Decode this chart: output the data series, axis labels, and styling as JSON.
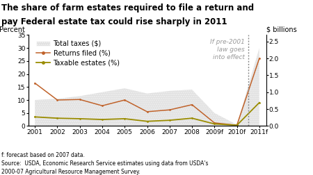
{
  "title_line1": "The share of farm estates required to file a return and",
  "title_line2": "pay Federal estate tax could rise sharply in 2011",
  "ylabel_left": "Percent",
  "ylabel_right": "$ billions",
  "annotation": "If pre-2001\nlaw goes\ninto effect",
  "footer": "f: forecast based on 2007 data.\nSource:  USDA, Economic Research Service estimates using data from USDA's\n2000-07 Agricultural Resource Management Survey.",
  "years": [
    "2001",
    "2002",
    "2003",
    "2004",
    "2005",
    "2006",
    "2007",
    "2008",
    "2009f",
    "2010f",
    "2011f"
  ],
  "returns_filed": [
    16.5,
    10.0,
    10.2,
    7.8,
    10.0,
    5.5,
    6.2,
    8.2,
    1.2,
    0.3,
    26.0
  ],
  "taxable_estates": [
    3.5,
    3.0,
    2.8,
    2.5,
    2.8,
    1.8,
    2.2,
    3.0,
    0.8,
    0.3,
    9.0
  ],
  "total_taxes_pct": [
    10.0,
    10.5,
    11.5,
    13.0,
    14.5,
    12.5,
    13.5,
    14.0,
    5.0,
    0.5,
    30.0
  ],
  "returns_color": "#c0622a",
  "taxable_color": "#9a8c00",
  "shade_color": "#c8c8c8",
  "vline_x_idx": 9.5,
  "ylim_left": [
    0,
    35
  ],
  "ylim_right": [
    0,
    2.692
  ],
  "yticks_left": [
    0,
    5,
    10,
    15,
    20,
    25,
    30,
    35
  ],
  "yticks_right": [
    0.0,
    0.5,
    1.0,
    1.5,
    2.0,
    2.5
  ],
  "title_fontsize": 8.5,
  "legend_fontsize": 7,
  "tick_fontsize": 6.5,
  "axis_label_fontsize": 7,
  "annotation_fontsize": 6.5,
  "footer_fontsize": 5.5,
  "annotation_color": "#999999"
}
